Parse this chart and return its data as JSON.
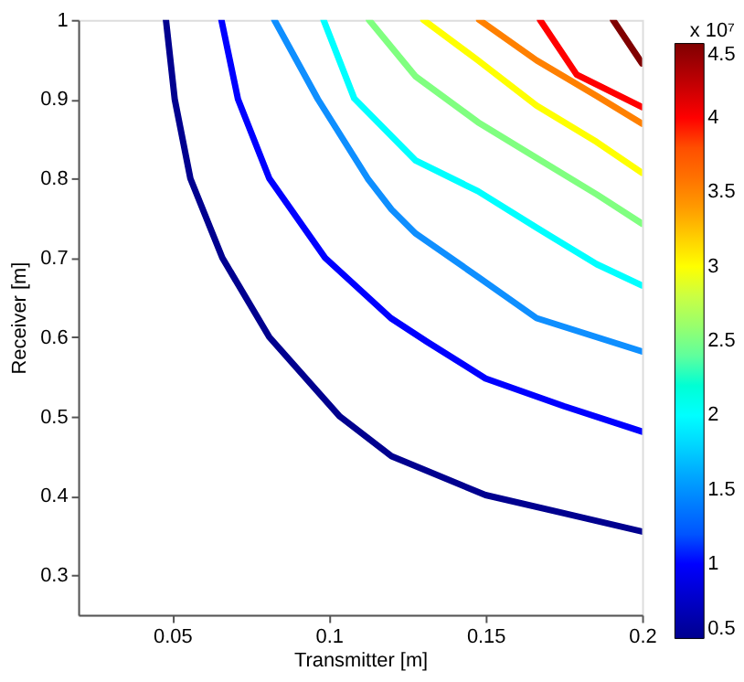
{
  "chart_data": {
    "type": "line",
    "xlabel": "Transmitter [m]",
    "ylabel": "Receiver [m]",
    "clabel": "x 10⁷",
    "xlim": [
      0.02,
      0.2
    ],
    "xticks": [
      0.05,
      0.1,
      0.15,
      0.2
    ],
    "ylim": [
      0.25,
      1
    ],
    "yticks": [
      0.3,
      0.4,
      0.5,
      0.6,
      0.7,
      0.8,
      0.9,
      1
    ],
    "clim": [
      0.5,
      4.5
    ],
    "cticks": [
      0.5,
      1,
      1.5,
      2,
      2.5,
      3,
      3.5,
      4,
      4.5
    ],
    "grid": false,
    "line_style": "solid",
    "marker": "none",
    "series": [
      {
        "color": "#00008f",
        "x": [
          0.048,
          0.0508,
          0.0558,
          0.066,
          0.081,
          0.1035,
          0.12,
          0.15,
          0.175,
          0.2
        ],
        "values": [
          1,
          0.9,
          0.8,
          0.7,
          0.6,
          0.5,
          0.45,
          0.401,
          0.378,
          0.355
        ]
      },
      {
        "color": "#0000ff",
        "x": [
          0.0657,
          0.071,
          0.081,
          0.0988,
          0.1198,
          0.1314,
          0.15,
          0.175,
          0.2
        ],
        "values": [
          1,
          0.9,
          0.8,
          0.7,
          0.624,
          0.594,
          0.548,
          0.513,
          0.481
        ]
      },
      {
        "color": "#0f8fff",
        "x": [
          0.0826,
          0.0965,
          0.1124,
          0.12,
          0.1276,
          0.1476,
          0.1663,
          0.2
        ],
        "values": [
          1,
          0.9,
          0.8,
          0.761,
          0.731,
          0.676,
          0.624,
          0.582
        ]
      },
      {
        "color": "#00ffff",
        "x": [
          0.0983,
          0.1081,
          0.1276,
          0.1476,
          0.1663,
          0.1855,
          0.2
        ],
        "values": [
          1,
          0.901,
          0.823,
          0.784,
          0.738,
          0.692,
          0.665
        ]
      },
      {
        "color": "#80ff80",
        "x": [
          0.1128,
          0.1276,
          0.1476,
          0.1663,
          0.1855,
          0.2
        ],
        "values": [
          1,
          0.929,
          0.871,
          0.826,
          0.78,
          0.743
        ]
      },
      {
        "color": "#ffff00",
        "x": [
          0.1302,
          0.1476,
          0.1663,
          0.1855,
          0.2
        ],
        "values": [
          1,
          0.949,
          0.892,
          0.846,
          0.807
        ]
      },
      {
        "color": "#ff8000",
        "x": [
          0.148,
          0.1663,
          0.1855,
          0.2
        ],
        "values": [
          1,
          0.949,
          0.904,
          0.869
        ]
      },
      {
        "color": "#ff0000",
        "x": [
          0.1674,
          0.1791,
          0.2
        ],
        "values": [
          1,
          0.931,
          0.89
        ]
      },
      {
        "color": "#800000",
        "x": [
          0.1907,
          0.2
        ],
        "values": [
          1,
          0.945
        ]
      }
    ]
  }
}
